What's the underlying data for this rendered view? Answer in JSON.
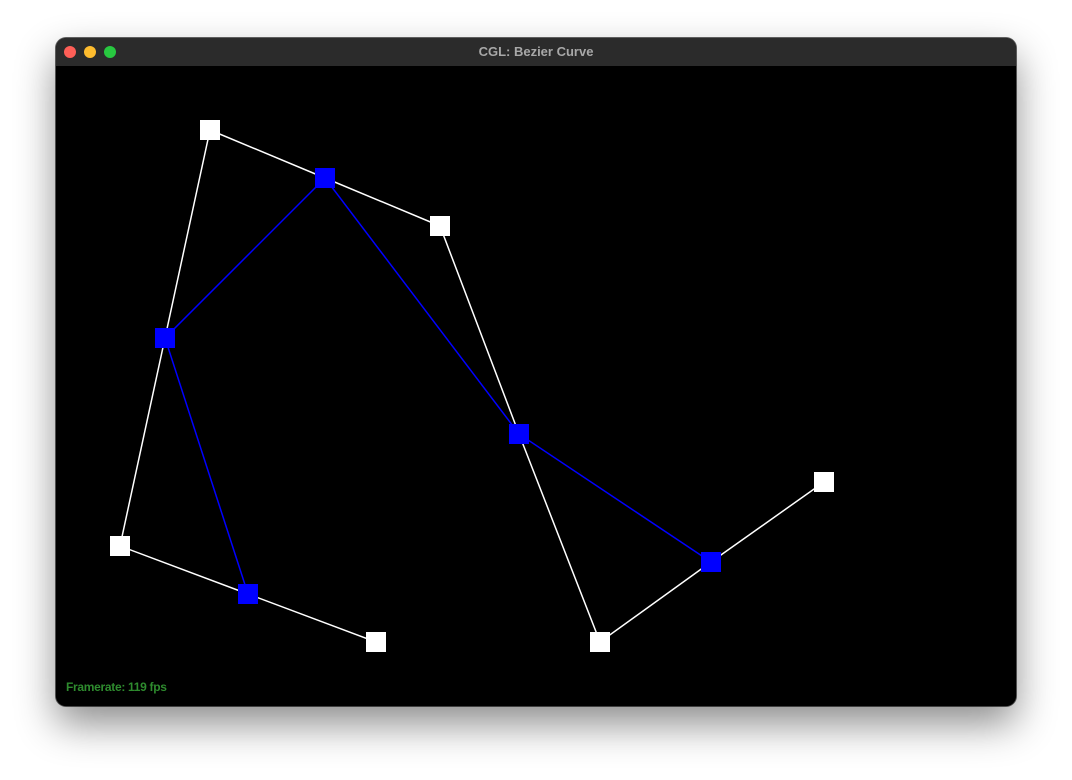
{
  "window": {
    "title": "CGL: Bezier Curve",
    "framerate_text": "Framerate: 119 fps"
  },
  "colors": {
    "control": "#ffffff",
    "intermediate": "#0000ff",
    "background": "#000000",
    "framerate": "#2e8b2e"
  }
}
